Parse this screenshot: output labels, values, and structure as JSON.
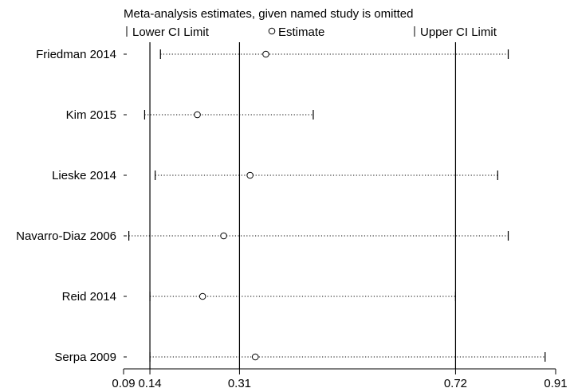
{
  "chart_data": {
    "type": "scatter",
    "title": "Meta-analysis estimates, given named study is omitted",
    "legend": {
      "placement": "top",
      "entries": [
        {
          "marker": "tick",
          "label": "Lower CI Limit"
        },
        {
          "marker": "circle",
          "label": "Estimate"
        },
        {
          "marker": "tick",
          "label": "Upper CI Limit"
        }
      ]
    },
    "xlim": [
      0.09,
      0.91
    ],
    "x_ticks": [
      0.09,
      0.14,
      0.31,
      0.72,
      0.91
    ],
    "x_tick_labels": [
      "0.09",
      "0.14",
      "0.31",
      "0.72",
      "0.91"
    ],
    "reference_lines": [
      0.14,
      0.31,
      0.72
    ],
    "studies": [
      {
        "name": "Friedman 2014",
        "lower": 0.16,
        "estimate": 0.36,
        "upper": 0.82
      },
      {
        "name": "Kim 2015",
        "lower": 0.13,
        "estimate": 0.23,
        "upper": 0.45
      },
      {
        "name": "Lieske 2014",
        "lower": 0.15,
        "estimate": 0.33,
        "upper": 0.8
      },
      {
        "name": "Navarro-Diaz 2006",
        "lower": 0.1,
        "estimate": 0.28,
        "upper": 0.82
      },
      {
        "name": "Reid 2014",
        "lower": 0.14,
        "estimate": 0.24,
        "upper": 0.72
      },
      {
        "name": "Serpa 2009",
        "lower": 0.14,
        "estimate": 0.34,
        "upper": 0.89
      }
    ],
    "colors": {
      "lines": "#000000",
      "marker_fill": "#ffffff",
      "background": "#ffffff"
    }
  }
}
